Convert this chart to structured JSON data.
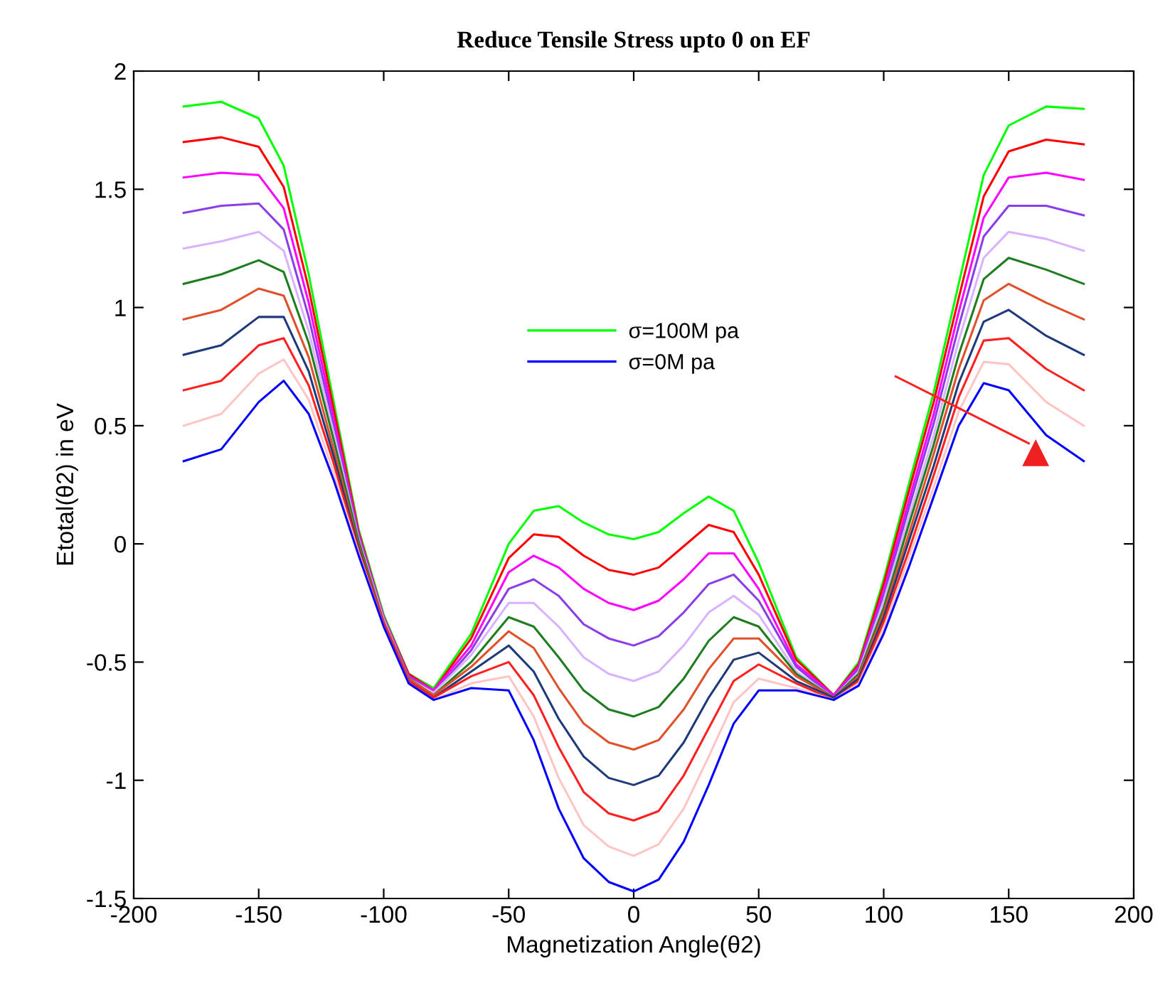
{
  "chart_data": {
    "type": "line",
    "title": "Reduce Tensile Stress upto 0 on EF",
    "xlabel": "Magnetization Angle(θ2)",
    "ylabel": "Etotal(θ2) in eV",
    "x": [
      -180,
      -165,
      -150,
      -140,
      -130,
      -120,
      -110,
      -100,
      -90,
      -80,
      -65,
      -50,
      -40,
      -30,
      -20,
      -10,
      0,
      10,
      20,
      30,
      40,
      50,
      65,
      80,
      90,
      100,
      110,
      120,
      130,
      140,
      150,
      165,
      180
    ],
    "series": [
      {
        "name": "σ=100M pa",
        "color": "#00ff00",
        "values": [
          1.85,
          1.87,
          1.8,
          1.6,
          1.14,
          0.6,
          0.06,
          -0.3,
          -0.55,
          -0.61,
          -0.38,
          0.0,
          0.14,
          0.16,
          0.09,
          0.04,
          0.02,
          0.05,
          0.13,
          0.2,
          0.14,
          -0.08,
          -0.48,
          -0.64,
          -0.5,
          -0.15,
          0.25,
          0.64,
          1.1,
          1.56,
          1.77,
          1.85,
          1.84
        ]
      },
      {
        "color": "#ff0000",
        "values": [
          1.7,
          1.72,
          1.68,
          1.51,
          1.08,
          0.57,
          0.05,
          -0.31,
          -0.55,
          -0.62,
          -0.4,
          -0.06,
          0.04,
          0.03,
          -0.05,
          -0.11,
          -0.13,
          -0.1,
          -0.01,
          0.08,
          0.05,
          -0.13,
          -0.49,
          -0.64,
          -0.51,
          -0.17,
          0.22,
          0.6,
          1.04,
          1.47,
          1.66,
          1.71,
          1.69
        ]
      },
      {
        "color": "#ff00ff",
        "values": [
          1.55,
          1.57,
          1.56,
          1.42,
          1.02,
          0.53,
          0.04,
          -0.31,
          -0.56,
          -0.62,
          -0.43,
          -0.12,
          -0.05,
          -0.1,
          -0.19,
          -0.25,
          -0.28,
          -0.24,
          -0.15,
          -0.04,
          -0.04,
          -0.19,
          -0.51,
          -0.64,
          -0.52,
          -0.2,
          0.18,
          0.55,
          0.98,
          1.38,
          1.55,
          1.57,
          1.54
        ]
      },
      {
        "color": "#8b3ee8",
        "values": [
          1.4,
          1.43,
          1.44,
          1.33,
          0.96,
          0.5,
          0.03,
          -0.32,
          -0.56,
          -0.63,
          -0.45,
          -0.19,
          -0.15,
          -0.22,
          -0.34,
          -0.4,
          -0.43,
          -0.39,
          -0.29,
          -0.17,
          -0.13,
          -0.24,
          -0.52,
          -0.65,
          -0.53,
          -0.22,
          0.15,
          0.51,
          0.92,
          1.3,
          1.43,
          1.43,
          1.39
        ]
      },
      {
        "color": "#d9b3ff",
        "values": [
          1.25,
          1.28,
          1.32,
          1.24,
          0.9,
          0.47,
          0.02,
          -0.32,
          -0.57,
          -0.63,
          -0.47,
          -0.25,
          -0.25,
          -0.35,
          -0.48,
          -0.55,
          -0.58,
          -0.54,
          -0.43,
          -0.29,
          -0.22,
          -0.3,
          -0.54,
          -0.65,
          -0.54,
          -0.24,
          0.11,
          0.46,
          0.86,
          1.21,
          1.32,
          1.29,
          1.24
        ]
      },
      {
        "color": "#1e7d1e",
        "values": [
          1.1,
          1.14,
          1.2,
          1.15,
          0.85,
          0.44,
          0.01,
          -0.33,
          -0.57,
          -0.64,
          -0.5,
          -0.31,
          -0.35,
          -0.48,
          -0.62,
          -0.7,
          -0.73,
          -0.69,
          -0.57,
          -0.41,
          -0.31,
          -0.35,
          -0.55,
          -0.65,
          -0.55,
          -0.27,
          0.08,
          0.42,
          0.8,
          1.12,
          1.21,
          1.16,
          1.1
        ]
      },
      {
        "color": "#e0502a",
        "values": [
          0.95,
          0.99,
          1.08,
          1.05,
          0.79,
          0.4,
          -0.01,
          -0.33,
          -0.57,
          -0.64,
          -0.52,
          -0.37,
          -0.44,
          -0.61,
          -0.76,
          -0.84,
          -0.87,
          -0.83,
          -0.7,
          -0.53,
          -0.4,
          -0.4,
          -0.56,
          -0.65,
          -0.56,
          -0.29,
          0.04,
          0.38,
          0.74,
          1.03,
          1.1,
          1.02,
          0.95
        ]
      },
      {
        "color": "#1f3a7a",
        "values": [
          0.8,
          0.84,
          0.96,
          0.96,
          0.73,
          0.37,
          -0.02,
          -0.34,
          -0.58,
          -0.65,
          -0.54,
          -0.43,
          -0.54,
          -0.74,
          -0.9,
          -0.99,
          -1.02,
          -0.98,
          -0.84,
          -0.65,
          -0.49,
          -0.46,
          -0.58,
          -0.65,
          -0.57,
          -0.31,
          0.01,
          0.33,
          0.68,
          0.94,
          0.99,
          0.88,
          0.8
        ]
      },
      {
        "color": "#ff2020",
        "values": [
          0.65,
          0.69,
          0.84,
          0.87,
          0.67,
          0.34,
          -0.03,
          -0.34,
          -0.58,
          -0.65,
          -0.56,
          -0.5,
          -0.64,
          -0.86,
          -1.05,
          -1.14,
          -1.17,
          -1.13,
          -0.98,
          -0.78,
          -0.58,
          -0.51,
          -0.59,
          -0.66,
          -0.58,
          -0.33,
          -0.03,
          0.29,
          0.62,
          0.86,
          0.87,
          0.74,
          0.65
        ]
      },
      {
        "color": "#ffc4c4",
        "values": [
          0.5,
          0.55,
          0.72,
          0.78,
          0.61,
          0.3,
          -0.04,
          -0.35,
          -0.59,
          -0.66,
          -0.59,
          -0.56,
          -0.73,
          -0.99,
          -1.19,
          -1.28,
          -1.32,
          -1.27,
          -1.12,
          -0.9,
          -0.67,
          -0.57,
          -0.61,
          -0.66,
          -0.59,
          -0.36,
          -0.06,
          0.24,
          0.56,
          0.77,
          0.76,
          0.6,
          0.5
        ]
      },
      {
        "name": "σ=0M pa",
        "color": "#0000ff",
        "values": [
          0.35,
          0.4,
          0.6,
          0.69,
          0.55,
          0.27,
          -0.05,
          -0.35,
          -0.59,
          -0.66,
          -0.61,
          -0.62,
          -0.83,
          -1.12,
          -1.33,
          -1.43,
          -1.47,
          -1.42,
          -1.26,
          -1.02,
          -0.76,
          -0.62,
          -0.62,
          -0.66,
          -0.6,
          -0.38,
          -0.1,
          0.2,
          0.5,
          0.68,
          0.65,
          0.46,
          0.35
        ]
      }
    ],
    "xlim": [
      -200,
      200
    ],
    "xticks": [
      -200,
      -150,
      -100,
      -50,
      0,
      50,
      100,
      150,
      200
    ],
    "ylim": [
      -1.5,
      2
    ],
    "yticks": [
      -1.5,
      -1,
      -0.5,
      0,
      0.5,
      1,
      1.5,
      2
    ],
    "grid": false,
    "legend": "top",
    "marker": "none",
    "line_style": "solid"
  }
}
